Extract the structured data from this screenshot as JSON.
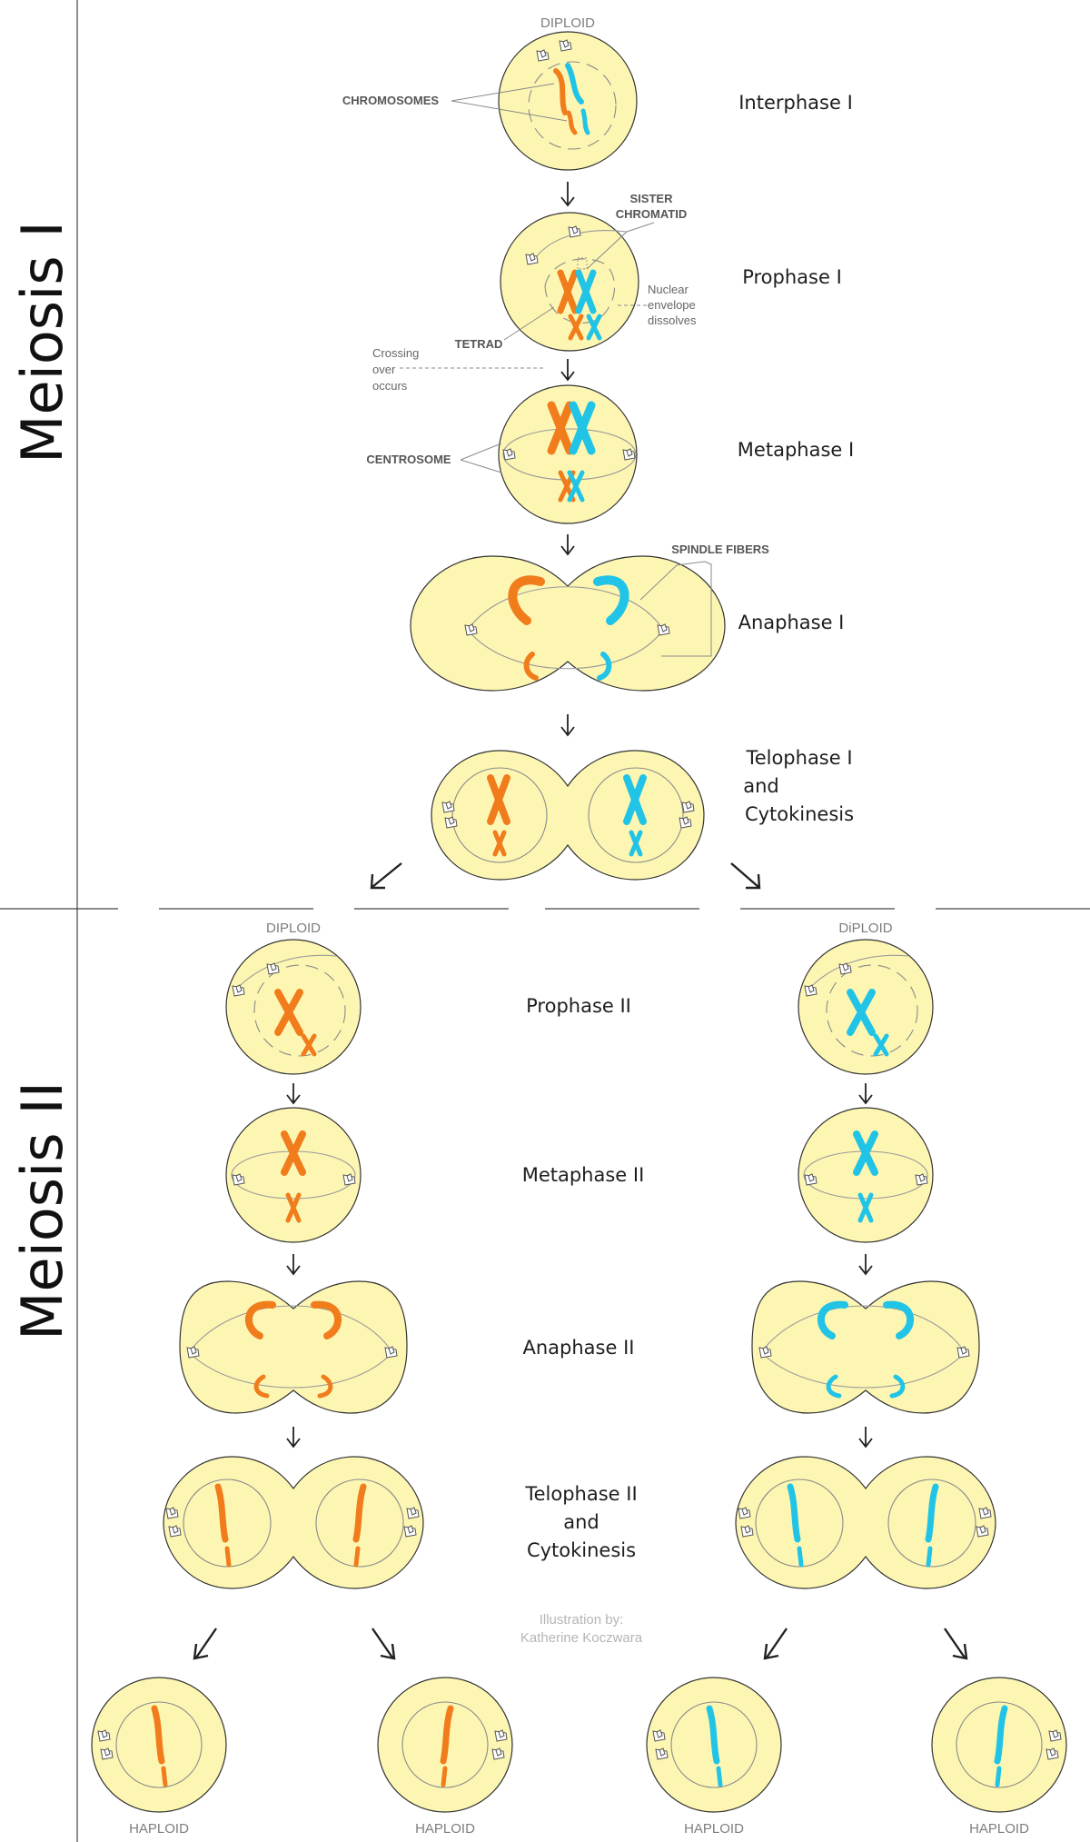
{
  "sections": {
    "meiosis1": "Meiosis I",
    "meiosis2": "Meiosis II"
  },
  "stages": {
    "interphase1": "Interphase I",
    "prophase1": "Prophase I",
    "metaphase1": "Metaphase I",
    "anaphase1": "Anaphase I",
    "telophase1": [
      "Telophase I",
      "and",
      "Cytokinesis"
    ],
    "prophase2": "Prophase II",
    "metaphase2": "Metaphase II",
    "anaphase2": "Anaphase II",
    "telophase2": [
      "Telophase II",
      "and",
      "Cytokinesis"
    ]
  },
  "labels": {
    "chromosomes": "CHROMOSOMES",
    "sister_chromatid": [
      "SISTER",
      "CHROMATID"
    ],
    "nuclear_envelope": [
      "Nuclear",
      "envelope",
      "dissolves"
    ],
    "tetrad": "TETRAD",
    "crossing_over": [
      "Crossing",
      "over",
      "occurs"
    ],
    "centrosome": "CENTROSOME",
    "spindle_fibers": "SPINDLE FIBERS"
  },
  "ploidy": {
    "top": "DIPLOID",
    "left_mid": "DIPLOID",
    "right_mid": "DiPLOID",
    "bottom": [
      "HAPLOID",
      "HAPLOID",
      "HAPLOID",
      "HAPLOID"
    ]
  },
  "credit": [
    "Illustration by:",
    "Katherine Koczwara"
  ],
  "colors": {
    "cell_fill": "#fdf6b3",
    "maternal": "#f07c1c",
    "paternal": "#21c4e6",
    "text": "#1e1e1e"
  }
}
